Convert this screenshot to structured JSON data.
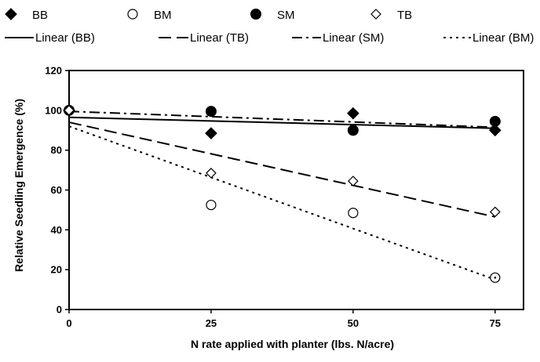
{
  "chart_data": {
    "type": "scatter",
    "xlabel": "N rate applied with planter (lbs. N/acre)",
    "ylabel": "Relative Seedling Emergence (%)",
    "xlim": [
      0,
      80
    ],
    "ylim": [
      0,
      120
    ],
    "x_ticks": [
      0,
      25,
      50,
      75
    ],
    "y_ticks": [
      0,
      20,
      40,
      60,
      80,
      100,
      120
    ],
    "grid": false,
    "legend_position": "top",
    "series": [
      {
        "name": "BB",
        "marker": "filled-diamond",
        "x": [
          0,
          25,
          50,
          75
        ],
        "y": [
          100,
          88.5,
          98.5,
          90
        ]
      },
      {
        "name": "BM",
        "marker": "open-circle",
        "x": [
          0,
          25,
          50,
          75
        ],
        "y": [
          100,
          52.5,
          48.5,
          16
        ]
      },
      {
        "name": "SM",
        "marker": "filled-circle",
        "x": [
          0,
          25,
          50,
          75
        ],
        "y": [
          100,
          99.5,
          90,
          94.5
        ]
      },
      {
        "name": "TB",
        "marker": "open-diamond",
        "x": [
          0,
          25,
          50,
          75
        ],
        "y": [
          100,
          68.5,
          64.5,
          49
        ]
      }
    ],
    "trendlines": [
      {
        "name": "Linear (BB)",
        "style": "solid",
        "y_at_x0": 96.5,
        "y_at_x75": 91
      },
      {
        "name": "Linear (TB)",
        "style": "long-dash",
        "y_at_x0": 94,
        "y_at_x75": 46.5
      },
      {
        "name": "Linear (SM)",
        "style": "dash-dot",
        "y_at_x0": 99.5,
        "y_at_x75": 91.5
      },
      {
        "name": "Linear (BM)",
        "style": "dot",
        "y_at_x0": 92,
        "y_at_x75": 15
      }
    ]
  }
}
